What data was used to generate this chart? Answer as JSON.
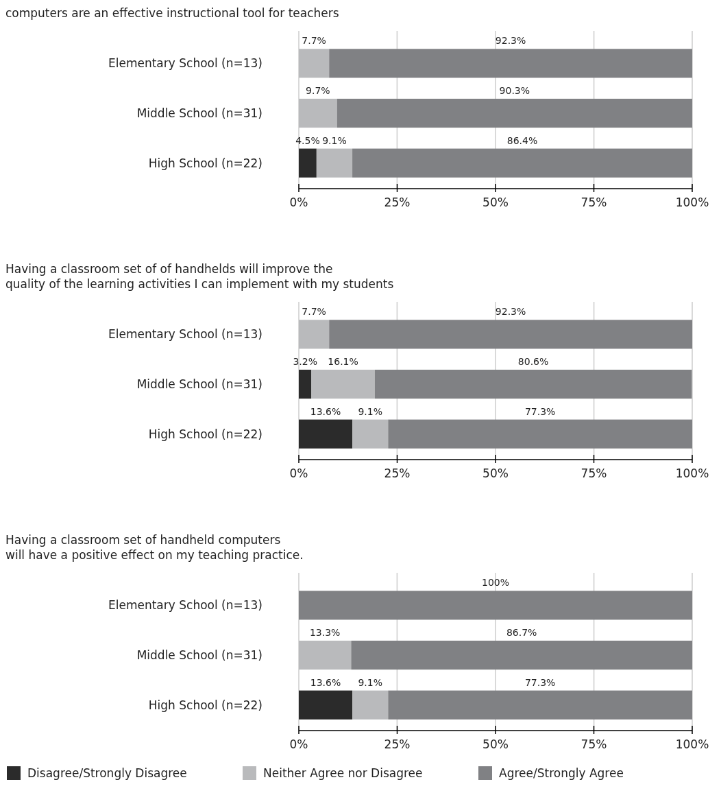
{
  "chart_data": [
    {
      "type": "bar",
      "orientation": "horizontal",
      "stacked": true,
      "title": "computers are an effective instructional tool for teachers",
      "categories": [
        "Elementary School (n=13)",
        "Middle School (n=31)",
        "High School (n=22)"
      ],
      "series": [
        {
          "color": "#2b2b2b",
          "values": [
            0,
            0,
            4.5
          ],
          "value_labels": [
            null,
            null,
            "4.5%"
          ]
        },
        {
          "color": "#b9babc",
          "values": [
            7.7,
            9.7,
            9.1
          ],
          "value_labels": [
            "7.7%",
            "9.7%",
            "9.1%"
          ]
        },
        {
          "color": "#808184",
          "values": [
            92.3,
            90.3,
            86.4
          ],
          "value_labels": [
            "92.3%",
            "90.3%",
            "86.4%"
          ]
        }
      ],
      "xlim": [
        0,
        100
      ],
      "xticks": [
        {
          "value": 0,
          "label": "0%"
        },
        {
          "value": 25,
          "label": "25%"
        },
        {
          "value": 50,
          "label": "50%"
        },
        {
          "value": 75,
          "label": "75%"
        },
        {
          "value": 100,
          "label": "100%"
        }
      ],
      "grid": "x"
    },
    {
      "type": "bar",
      "orientation": "horizontal",
      "stacked": true,
      "title": "Having a classroom set of of handhelds will improve the\nquality of the learning activities I can implement with my students",
      "categories": [
        "Elementary School (n=13)",
        "Middle School (n=31)",
        "High School (n=22)"
      ],
      "series": [
        {
          "color": "#2b2b2b",
          "values": [
            0,
            3.2,
            13.6
          ],
          "value_labels": [
            null,
            "3.2%",
            "13.6%"
          ]
        },
        {
          "color": "#b9babc",
          "values": [
            7.7,
            16.1,
            9.1
          ],
          "value_labels": [
            "7.7%",
            "16.1%",
            "9.1%"
          ]
        },
        {
          "color": "#808184",
          "values": [
            92.3,
            80.6,
            77.3
          ],
          "value_labels": [
            "92.3%",
            "80.6%",
            "77.3%"
          ]
        }
      ],
      "xlim": [
        0,
        100
      ],
      "xticks": [
        {
          "value": 0,
          "label": "0%"
        },
        {
          "value": 25,
          "label": "25%"
        },
        {
          "value": 50,
          "label": "50%"
        },
        {
          "value": 75,
          "label": "75%"
        },
        {
          "value": 100,
          "label": "100%"
        }
      ],
      "grid": "x"
    },
    {
      "type": "bar",
      "orientation": "horizontal",
      "stacked": true,
      "title": "Having a classroom set of handheld computers\nwill have a positive effect on my teaching practice.",
      "categories": [
        "Elementary School (n=13)",
        "Middle School (n=31)",
        "High School (n=22)"
      ],
      "series": [
        {
          "name": "Disagree/Strongly Disagree",
          "color": "#2b2b2b",
          "values": [
            0,
            0,
            13.6
          ],
          "value_labels": [
            null,
            null,
            "13.6%"
          ]
        },
        {
          "name": "Neither Agree nor Disagree",
          "color": "#b9babc",
          "values": [
            0,
            13.3,
            9.1
          ],
          "value_labels": [
            null,
            "13.3%",
            "9.1%"
          ]
        },
        {
          "name": "Agree/Strongly Agree",
          "color": "#808184",
          "values": [
            100,
            86.7,
            77.3
          ],
          "value_labels": [
            "100%",
            "86.7%",
            "77.3%"
          ]
        }
      ],
      "xlim": [
        0,
        100
      ],
      "xticks": [
        {
          "value": 0,
          "label": "0%"
        },
        {
          "value": 25,
          "label": "25%"
        },
        {
          "value": 50,
          "label": "50%"
        },
        {
          "value": 75,
          "label": "75%"
        },
        {
          "value": 100,
          "label": "100%"
        }
      ],
      "grid": "x",
      "legend": "bottom"
    }
  ]
}
